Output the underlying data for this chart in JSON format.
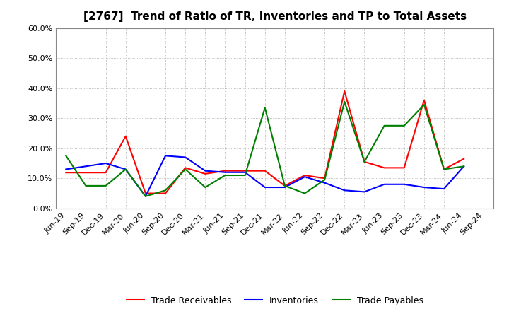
{
  "title": "[2767]  Trend of Ratio of TR, Inventories and TP to Total Assets",
  "x_labels": [
    "Jun-19",
    "Sep-19",
    "Dec-19",
    "Mar-20",
    "Jun-20",
    "Sep-20",
    "Dec-20",
    "Mar-21",
    "Jun-21",
    "Sep-21",
    "Dec-21",
    "Mar-22",
    "Jun-22",
    "Sep-22",
    "Dec-22",
    "Mar-23",
    "Jun-23",
    "Sep-23",
    "Dec-23",
    "Mar-24",
    "Jun-24",
    "Sep-24"
  ],
  "trade_receivables": [
    0.119,
    0.119,
    0.119,
    0.24,
    0.05,
    0.05,
    0.135,
    0.115,
    0.125,
    0.125,
    0.125,
    0.075,
    0.11,
    0.1,
    0.39,
    0.155,
    0.135,
    0.135,
    0.36,
    0.13,
    0.165,
    null
  ],
  "inventories": [
    0.13,
    0.14,
    0.15,
    0.13,
    0.04,
    0.175,
    0.17,
    0.125,
    0.12,
    0.12,
    0.07,
    0.07,
    0.105,
    0.085,
    0.06,
    0.055,
    0.08,
    0.08,
    0.07,
    0.065,
    0.14,
    null
  ],
  "trade_payables": [
    0.175,
    0.075,
    0.075,
    0.13,
    0.04,
    0.06,
    0.13,
    0.07,
    0.11,
    0.11,
    0.335,
    0.075,
    0.05,
    0.095,
    0.355,
    0.155,
    0.275,
    0.275,
    0.345,
    0.13,
    0.14,
    null
  ],
  "ylim": [
    0.0,
    0.6
  ],
  "yticks": [
    0.0,
    0.1,
    0.2,
    0.3,
    0.4,
    0.5,
    0.6
  ],
  "color_tr": "#ff0000",
  "color_inv": "#0000ff",
  "color_tp": "#008000",
  "legend_labels": [
    "Trade Receivables",
    "Inventories",
    "Trade Payables"
  ],
  "bg_color": "#ffffff",
  "plot_bg_color": "#ffffff",
  "title_fontsize": 11,
  "tick_fontsize": 8,
  "ytick_fontsize": 8,
  "linewidth": 1.5
}
